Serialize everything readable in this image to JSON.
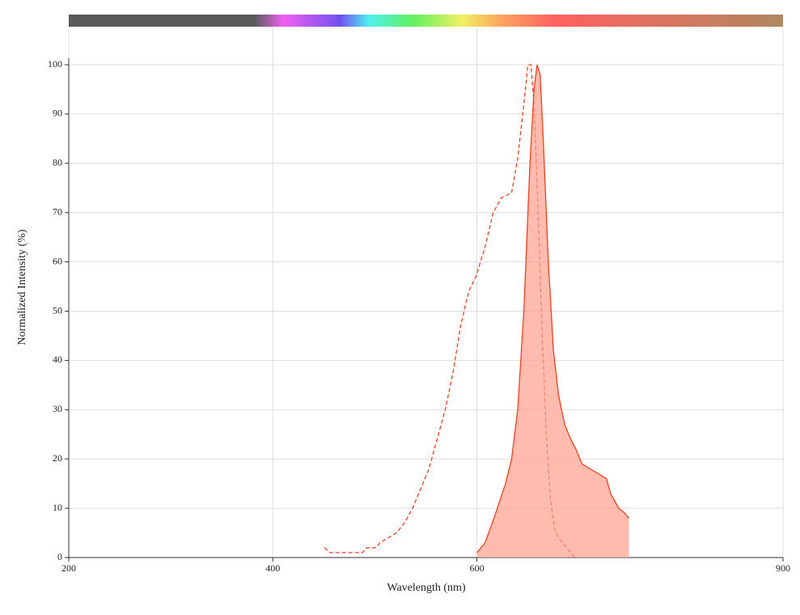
{
  "chart_data": {
    "type": "line",
    "xlabel": "Wavelength (nm)",
    "ylabel": "Normalized Intensity (%)",
    "xlim": [
      200,
      900
    ],
    "ylim": [
      0,
      100
    ],
    "xticks": [
      200,
      400,
      600,
      900
    ],
    "yticks": [
      0,
      10,
      20,
      30,
      40,
      50,
      60,
      70,
      80,
      90,
      100
    ],
    "grid": true,
    "series": [
      {
        "color": "#f04020",
        "dashed": true,
        "filled": false,
        "x": [
          450.5,
          456,
          488,
          492,
          501,
          505,
          513,
          521,
          529,
          537,
          545,
          553,
          561,
          569,
          577,
          584,
          592,
          599,
          608,
          616,
          624,
          634,
          640,
          646,
          650,
          653,
          656,
          660,
          664,
          668,
          672,
          676,
          680,
          688,
          696
        ],
        "values": [
          2,
          1,
          1,
          2,
          2,
          3,
          4,
          5,
          7,
          10,
          14,
          18,
          24,
          30,
          38,
          47,
          54,
          57,
          63,
          70,
          73,
          74,
          81,
          92,
          100,
          100,
          92,
          70,
          45,
          25,
          12,
          6,
          4,
          2,
          0
        ]
      },
      {
        "color": "#f04020",
        "dashed": false,
        "filled": true,
        "fill": "#ffa08c",
        "x": [
          600,
          608,
          615,
          620,
          628,
          634,
          640,
          646,
          652,
          656,
          659,
          662,
          665,
          670,
          675,
          680,
          686,
          692,
          697,
          703,
          711,
          719,
          727,
          731,
          739,
          745,
          749
        ],
        "values": [
          1,
          3,
          7,
          10,
          15,
          20,
          30,
          50,
          80,
          95,
          100,
          98,
          85,
          60,
          42,
          33,
          27,
          24,
          22,
          19,
          18,
          17,
          16,
          13,
          10,
          9,
          8
        ]
      }
    ]
  }
}
